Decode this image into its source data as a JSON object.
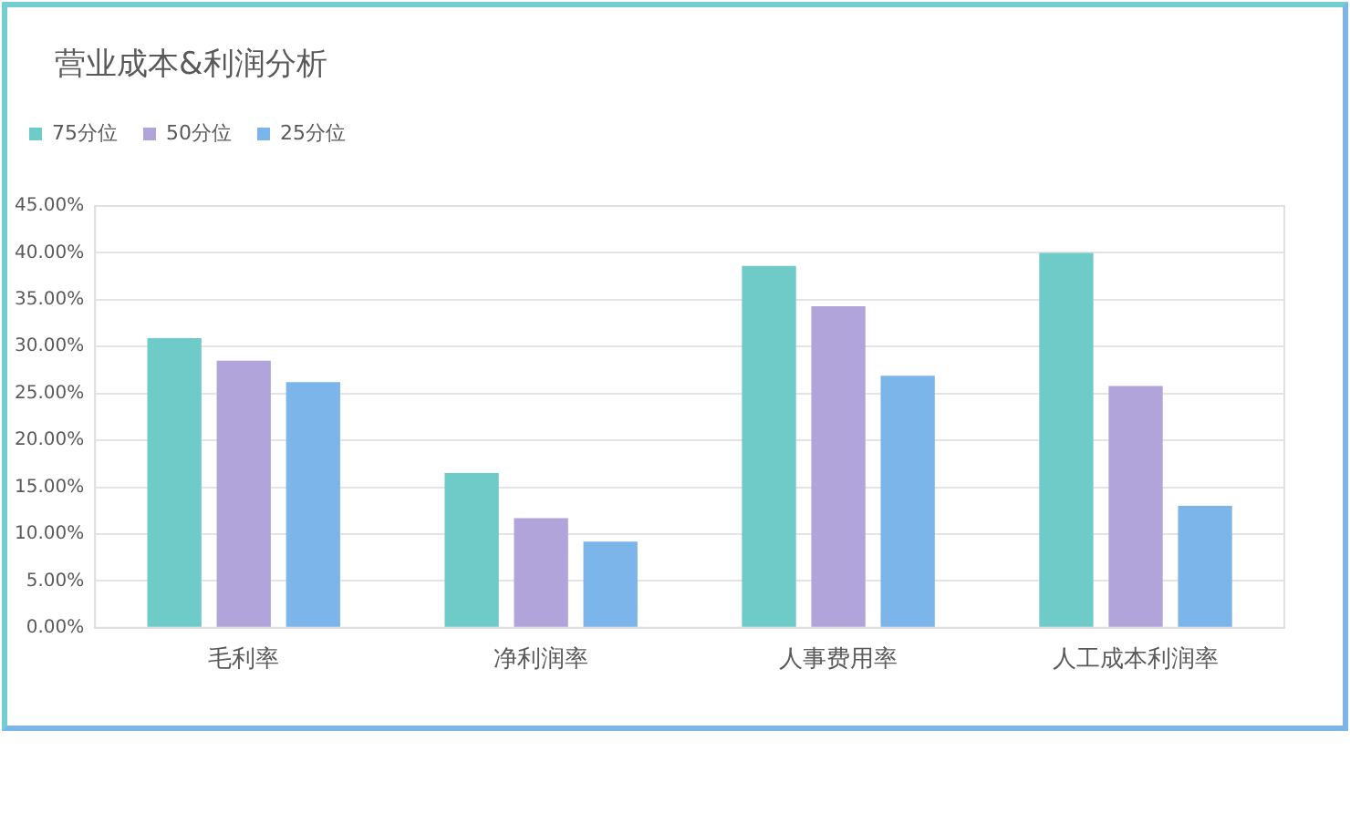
{
  "chart_data": {
    "type": "bar",
    "title": "营业成本&利润分析",
    "categories": [
      "毛利率",
      "净利润率",
      "人事费用率",
      "人工成本利润率"
    ],
    "series": [
      {
        "name": "75分位",
        "color": "#6ecbc8",
        "values": [
          30.9,
          16.5,
          38.6,
          40.0
        ]
      },
      {
        "name": "50分位",
        "color": "#b1a4db",
        "values": [
          28.5,
          11.7,
          34.3,
          25.8
        ]
      },
      {
        "name": "25分位",
        "color": "#7bb5ea",
        "values": [
          26.2,
          9.2,
          26.9,
          13.0
        ]
      }
    ],
    "ylim": [
      0,
      45
    ],
    "yticks": [
      {
        "value": 0,
        "label": "0.00%"
      },
      {
        "value": 5,
        "label": "5.00%"
      },
      {
        "value": 10,
        "label": "10.00%"
      },
      {
        "value": 15,
        "label": "15.00%"
      },
      {
        "value": 20,
        "label": "20.00%"
      },
      {
        "value": 25,
        "label": "25.00%"
      },
      {
        "value": 30,
        "label": "30.00%"
      },
      {
        "value": 35,
        "label": "35.00%"
      },
      {
        "value": 40,
        "label": "40.00%"
      },
      {
        "value": 45,
        "label": "45.00%"
      }
    ],
    "grid": "y",
    "legend": "top left"
  }
}
